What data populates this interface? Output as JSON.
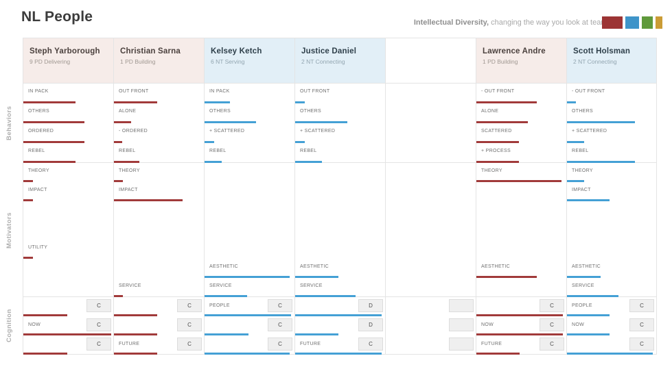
{
  "page": {
    "title": "NL People",
    "tagline_bold": "Intellectual Diversity,",
    "tagline_rest": " changing the way you look at teams"
  },
  "legend": [
    {
      "name": "red-square",
      "color": "#9c3434",
      "width": 30
    },
    {
      "name": "blue-square",
      "color": "#3e94c9",
      "width": 20
    },
    {
      "name": "green-square",
      "color": "#5f993b",
      "width": 16
    },
    {
      "name": "gold-square",
      "color": "#cb9c35",
      "width": 10
    }
  ],
  "sections": {
    "behaviors": "Behaviors",
    "motivators": "Motivators",
    "cognition": "Cognition"
  },
  "colors": {
    "pd_bar": "#a13a3a",
    "nt_bar": "#44a0d5",
    "pd_header_bg": "#f6ece9",
    "nt_header_bg": "#e2eff7"
  },
  "people": [
    {
      "name": "Steph Yarborough",
      "subtitle": "9 PD Delivering",
      "theme": "pd",
      "behaviors": [
        {
          "label": "IN PACK",
          "value": 58
        },
        {
          "label": "OTHERS",
          "value": 68
        },
        {
          "label": "ORDERED",
          "value": 68
        },
        {
          "label": "REBEL",
          "value": 58
        }
      ],
      "motivators": [
        {
          "label": "THEORY",
          "slot": 1,
          "value": 10.5
        },
        {
          "label": "IMPACT",
          "slot": 2,
          "value": 10.5
        },
        {
          "label": "UTILITY",
          "slot": 5,
          "value": 10.5
        }
      ],
      "cognition": [
        {
          "label": "",
          "badge": "C",
          "value": 48.5
        },
        {
          "label": "NOW",
          "badge": "C",
          "value": 98
        },
        {
          "label": "",
          "badge": "C",
          "value": 48.5
        }
      ]
    },
    {
      "name": "Christian Sarna",
      "subtitle": "1 PD Building",
      "theme": "pd",
      "behaviors": [
        {
          "label": "OUT FRONT",
          "value": 48
        },
        {
          "label": "ALONE",
          "value": 19
        },
        {
          "label": "- ORDERED",
          "value": 9
        },
        {
          "label": "REBEL",
          "value": 28
        }
      ],
      "motivators": [
        {
          "label": "THEORY",
          "slot": 1,
          "value": 10
        },
        {
          "label": "IMPACT",
          "slot": 2,
          "value": 76
        },
        {
          "label": "SERVICE",
          "slot": 7,
          "value": 10
        }
      ],
      "cognition": [
        {
          "label": "",
          "badge": "C",
          "value": 48
        },
        {
          "label": "",
          "badge": "C",
          "value": 48
        },
        {
          "label": "FUTURE",
          "badge": "C",
          "value": 48
        }
      ]
    },
    {
      "name": "Kelsey Ketch",
      "subtitle": "6 NT Serving",
      "theme": "nt",
      "behaviors": [
        {
          "label": "IN PACK",
          "value": 28
        },
        {
          "label": "OTHERS",
          "value": 57
        },
        {
          "label": "+ SCATTERED",
          "value": 11
        },
        {
          "label": "REBEL",
          "value": 19
        }
      ],
      "motivators": [
        {
          "label": "AESTHETIC",
          "slot": 6,
          "value": 95
        },
        {
          "label": "SERVICE",
          "slot": 7,
          "value": 47
        }
      ],
      "cognition": [
        {
          "label": "PEOPLE",
          "badge": "C",
          "value": 96
        },
        {
          "label": "",
          "badge": "C",
          "value": 48.5
        },
        {
          "label": "",
          "badge": "C",
          "value": 95
        }
      ]
    },
    {
      "name": "Justice Daniel",
      "subtitle": "2 NT Connecting",
      "theme": "nt",
      "behaviors": [
        {
          "label": "OUT FRONT",
          "value": 11
        },
        {
          "label": "OTHERS",
          "value": 58
        },
        {
          "label": "+ SCATTERED",
          "value": 11
        },
        {
          "label": "REBEL",
          "value": 30
        }
      ],
      "motivators": [
        {
          "label": "AESTHETIC",
          "slot": 6,
          "value": 48
        },
        {
          "label": "SERVICE",
          "slot": 7,
          "value": 67
        }
      ],
      "cognition": [
        {
          "label": "",
          "badge": "D",
          "value": 96
        },
        {
          "label": "",
          "badge": "D",
          "value": 48
        },
        {
          "label": "FUTURE",
          "badge": "C",
          "value": 96
        }
      ]
    },
    {
      "name": "",
      "subtitle": "",
      "theme": "empty",
      "behaviors": [],
      "motivators": [],
      "cognition": [
        {
          "label": "",
          "badge": "",
          "value": 0
        },
        {
          "label": "",
          "badge": "",
          "value": 0
        },
        {
          "label": "",
          "badge": "",
          "value": 0
        }
      ]
    },
    {
      "name": "Lawrence Andre",
      "subtitle": "1 PD Building",
      "theme": "pd",
      "behaviors": [
        {
          "label": "- OUT FRONT",
          "value": 67
        },
        {
          "label": "ALONE",
          "value": 57
        },
        {
          "label": "SCATTERED",
          "value": 47
        },
        {
          "label": "+ PROCESS",
          "value": 47
        }
      ],
      "motivators": [
        {
          "label": "THEORY",
          "slot": 1,
          "value": 95
        },
        {
          "label": "AESTHETIC",
          "slot": 6,
          "value": 67
        }
      ],
      "cognition": [
        {
          "label": "",
          "badge": "C",
          "value": 96
        },
        {
          "label": "NOW",
          "badge": "C",
          "value": 96
        },
        {
          "label": "FUTURE",
          "badge": "C",
          "value": 48
        }
      ]
    },
    {
      "name": "Scott Holsman",
      "subtitle": "2 NT Connecting",
      "theme": "nt",
      "behaviors": [
        {
          "label": "- OUT FRONT",
          "value": 10
        },
        {
          "label": "OTHERS",
          "value": 76
        },
        {
          "label": "+ SCATTERED",
          "value": 19
        },
        {
          "label": "REBEL",
          "value": 76
        }
      ],
      "motivators": [
        {
          "label": "THEORY",
          "slot": 1,
          "value": 19
        },
        {
          "label": "IMPACT",
          "slot": 2,
          "value": 48
        },
        {
          "label": "AESTHETIC",
          "slot": 6,
          "value": 38
        },
        {
          "label": "SERVICE",
          "slot": 7,
          "value": 58
        }
      ],
      "cognition": [
        {
          "label": "PEOPLE",
          "badge": "C",
          "value": 48
        },
        {
          "label": "NOW",
          "badge": "C",
          "value": 48
        },
        {
          "label": "",
          "badge": "C",
          "value": 96
        }
      ]
    }
  ]
}
